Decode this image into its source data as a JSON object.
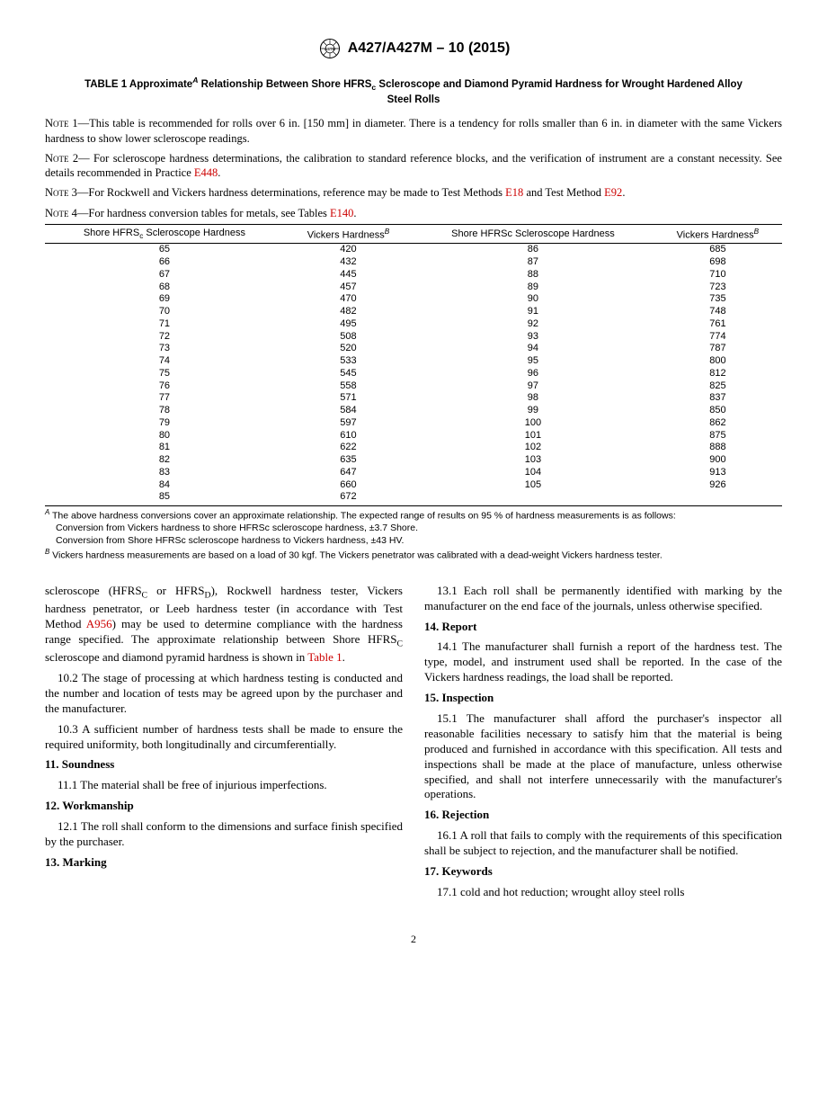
{
  "header": {
    "standard_id": "A427/A427M – 10 (2015)"
  },
  "table": {
    "title_prefix": "TABLE 1 Approximate",
    "title_rest": " Relationship Between Shore HFRS",
    "title_sub": "c",
    "title_end": " Scleroscope and Diamond Pyramid Hardness for Wrought Hardened Alloy Steel Rolls",
    "headers": {
      "h1a": "Shore HFRS",
      "h1b": " Scleroscope Hardness",
      "h2": "Vickers Hardness",
      "h3": "Shore HFRSc Scleroscope Hardness",
      "h4": "Vickers Hardness"
    },
    "rows": [
      {
        "a": "65",
        "b": "420",
        "c": "86",
        "d": "685"
      },
      {
        "a": "66",
        "b": "432",
        "c": "87",
        "d": "698"
      },
      {
        "a": "67",
        "b": "445",
        "c": "88",
        "d": "710"
      },
      {
        "a": "68",
        "b": "457",
        "c": "89",
        "d": "723"
      },
      {
        "a": "69",
        "b": "470",
        "c": "90",
        "d": "735"
      },
      {
        "a": "70",
        "b": "482",
        "c": "91",
        "d": "748"
      },
      {
        "a": "71",
        "b": "495",
        "c": "92",
        "d": "761"
      },
      {
        "a": "72",
        "b": "508",
        "c": "93",
        "d": "774"
      },
      {
        "a": "73",
        "b": "520",
        "c": "94",
        "d": "787"
      },
      {
        "a": "74",
        "b": "533",
        "c": "95",
        "d": "800"
      },
      {
        "a": "75",
        "b": "545",
        "c": "96",
        "d": "812"
      },
      {
        "a": "76",
        "b": "558",
        "c": "97",
        "d": "825"
      },
      {
        "a": "77",
        "b": "571",
        "c": "98",
        "d": "837"
      },
      {
        "a": "78",
        "b": "584",
        "c": "99",
        "d": "850"
      },
      {
        "a": "79",
        "b": "597",
        "c": "100",
        "d": "862"
      },
      {
        "a": "80",
        "b": "610",
        "c": "101",
        "d": "875"
      },
      {
        "a": "81",
        "b": "622",
        "c": "102",
        "d": "888"
      },
      {
        "a": "82",
        "b": "635",
        "c": "103",
        "d": "900"
      },
      {
        "a": "83",
        "b": "647",
        "c": "104",
        "d": "913"
      },
      {
        "a": "84",
        "b": "660",
        "c": "105",
        "d": "926"
      },
      {
        "a": "85",
        "b": "672",
        "c": "",
        "d": ""
      }
    ]
  },
  "notes": {
    "n1_label": "Note 1",
    "n1": "—This table is recommended for rolls over 6 in. [150 mm] in diameter. There is a tendency for rolls smaller than 6 in. in diameter with the same Vickers hardness to show lower scleroscope readings.",
    "n2_label": "Note 2",
    "n2a": "— For scleroscope hardness determinations, the calibration to standard reference blocks, and the verification of instrument are a constant necessity. See details recommended in Practice ",
    "n2_link": "E448",
    "n2b": ".",
    "n3_label": "Note 3",
    "n3a": "—For Rockwell and Vickers hardness determinations, reference may be made to Test Methods ",
    "n3_link1": "E18",
    "n3b": " and Test Method ",
    "n3_link2": "E92",
    "n3c": ".",
    "n4_label": "Note 4",
    "n4a": "—For hardness conversion tables for metals, see Tables ",
    "n4_link": "E140",
    "n4b": "."
  },
  "footnotes": {
    "fa1": " The above hardness conversions cover an approximate relationship. The expected range of results on 95 % of hardness measurements is as follows:",
    "fa2": "Conversion from Vickers hardness to shore HFRSc scleroscope hardness, ±3.7 Shore.",
    "fa3": "Conversion from Shore HFRSc scleroscope hardness to Vickers hardness, ±43 HV.",
    "fb": " Vickers hardness measurements are based on a load of 30 kgf. The Vickers penetrator was calibrated with a dead-weight Vickers hardness tester."
  },
  "body": {
    "p10_1a": "scleroscope (HFRS",
    "p10_1b": " or HFRS",
    "p10_1c": "), Rockwell hardness tester, Vickers hardness penetrator, or Leeb hardness tester (in accordance with Test Method ",
    "p10_1_link": "A956",
    "p10_1d": ") may be used to determine compliance with the hardness range specified. The approximate relationship between Shore HFRS",
    "p10_1e": " scleroscope and diamond pyramid hardness is shown in ",
    "p10_1_tref": "Table 1",
    "p10_1f": ".",
    "p10_2": "10.2 The stage of processing at which hardness testing is conducted and the number and location of tests may be agreed upon by the purchaser and the manufacturer.",
    "p10_3": "10.3 A sufficient number of hardness tests shall be made to ensure the required uniformity, both longitudinally and circumferentially.",
    "s11": "11. Soundness",
    "p11_1": "11.1 The material shall be free of injurious imperfections.",
    "s12": "12. Workmanship",
    "p12_1": "12.1 The roll shall conform to the dimensions and surface finish specified by the purchaser.",
    "s13": "13. Marking",
    "p13_1": "13.1 Each roll shall be permanently identified with marking by the manufacturer on the end face of the journals, unless otherwise specified.",
    "s14": "14. Report",
    "p14_1": "14.1 The manufacturer shall furnish a report of the hardness test. The type, model, and instrument used shall be reported. In the case of the Vickers hardness readings, the load shall be reported.",
    "s15": "15. Inspection",
    "p15_1": "15.1 The manufacturer shall afford the purchaser's inspector all reasonable facilities necessary to satisfy him that the material is being produced and furnished in accordance with this specification. All tests and inspections shall be made at the place of manufacture, unless otherwise specified, and shall not interfere unnecessarily with the manufacturer's operations.",
    "s16": "16. Rejection",
    "p16_1": "16.1 A roll that fails to comply with the requirements of this specification shall be subject to rejection, and the manufacturer shall be notified.",
    "s17": "17. Keywords",
    "p17_1": "17.1 cold and hot reduction; wrought alloy steel rolls"
  },
  "page_number": "2"
}
